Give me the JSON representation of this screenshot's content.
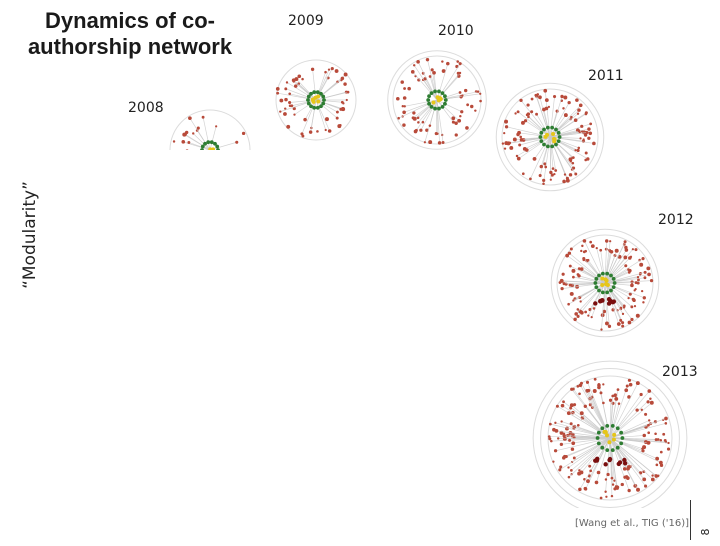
{
  "title": "Dynamics of co-authorship network",
  "y_axis_label": "“Modularity”",
  "years": [
    "2008",
    "2009",
    "2010",
    "2011",
    "2012",
    "2013"
  ],
  "citation": "[Wang et al., TIG ('16)]",
  "page_number": "8",
  "colors": {
    "node_outer": "#b84a3a",
    "node_core": "#2e7d32",
    "node_center": "#e6c619",
    "node_cluster": "#7a0f0f",
    "edges": "#c8c8c8"
  }
}
